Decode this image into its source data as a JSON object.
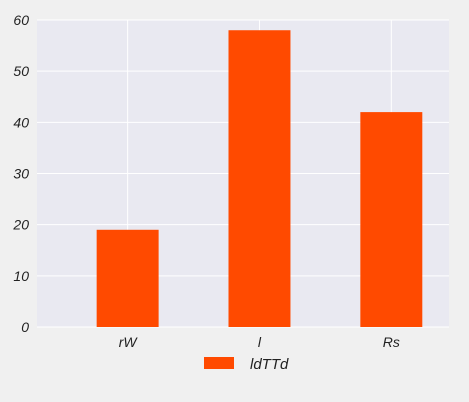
{
  "chart_data": {
    "type": "bar",
    "title": "",
    "xlabel": "",
    "ylabel": "",
    "categories": [
      "rW",
      "l",
      "Rs"
    ],
    "series": [
      {
        "name": "ldTTd",
        "values": [
          19,
          58,
          42
        ],
        "color": "#ff4a00"
      }
    ],
    "ylim": [
      0,
      60
    ],
    "yticks": [
      0,
      10,
      20,
      30,
      40,
      50,
      60
    ],
    "ytick_labels": [
      "0",
      "10",
      "20",
      "30",
      "40",
      "50",
      "60"
    ],
    "grid": true,
    "legend_position": "bottom-center",
    "plot_background": "#e9e9f1",
    "grid_color": "#ffffff"
  }
}
